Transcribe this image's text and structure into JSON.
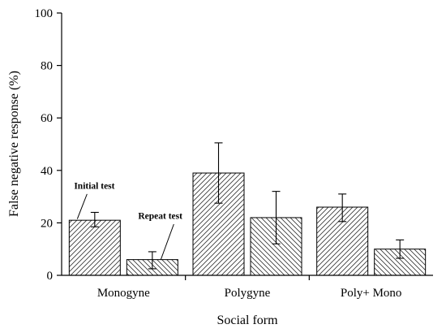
{
  "chart_data": {
    "type": "bar",
    "title": "",
    "xlabel": "Social form",
    "ylabel": "False negative response (%)",
    "ylim": [
      0,
      100
    ],
    "yticks": [
      0,
      20,
      40,
      60,
      80,
      100
    ],
    "grid": false,
    "legend": "none",
    "categories": [
      "Monogyne",
      "Polygyne",
      "Poly+ Mono"
    ],
    "series": [
      {
        "name": "Initial test",
        "values": [
          21,
          39,
          26
        ],
        "error": [
          [
            18.5,
            24
          ],
          [
            27.5,
            50.5
          ],
          [
            20.5,
            31
          ]
        ],
        "hatch": "diagonal-up"
      },
      {
        "name": "Repeat test",
        "values": [
          6,
          22,
          10
        ],
        "error": [
          [
            2.5,
            9
          ],
          [
            12,
            32
          ],
          [
            6.5,
            13.5
          ]
        ],
        "hatch": "diagonal-down"
      }
    ],
    "annotations": [
      {
        "text": "Initial test",
        "series": 0,
        "category": 0
      },
      {
        "text": "Repeat test",
        "series": 1,
        "category": 0
      }
    ]
  }
}
